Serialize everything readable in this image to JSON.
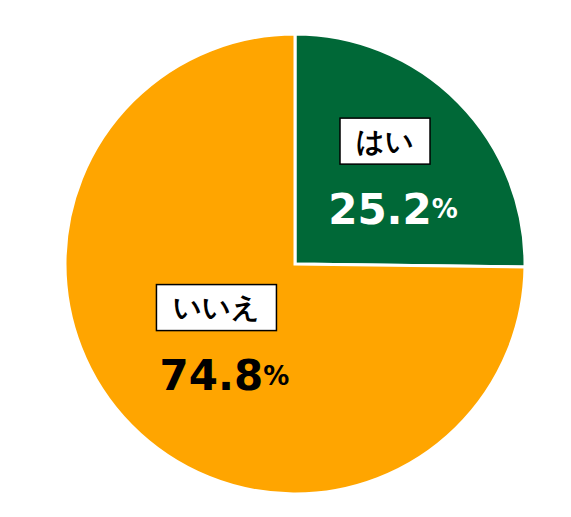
{
  "chart_data": {
    "type": "pie",
    "categories": [
      "はい",
      "いいえ"
    ],
    "values": [
      25.2,
      74.8
    ],
    "value_labels": [
      "25.2%",
      "74.8%"
    ],
    "colors": [
      "#006837",
      "#FFA500"
    ],
    "data_labels": true
  }
}
